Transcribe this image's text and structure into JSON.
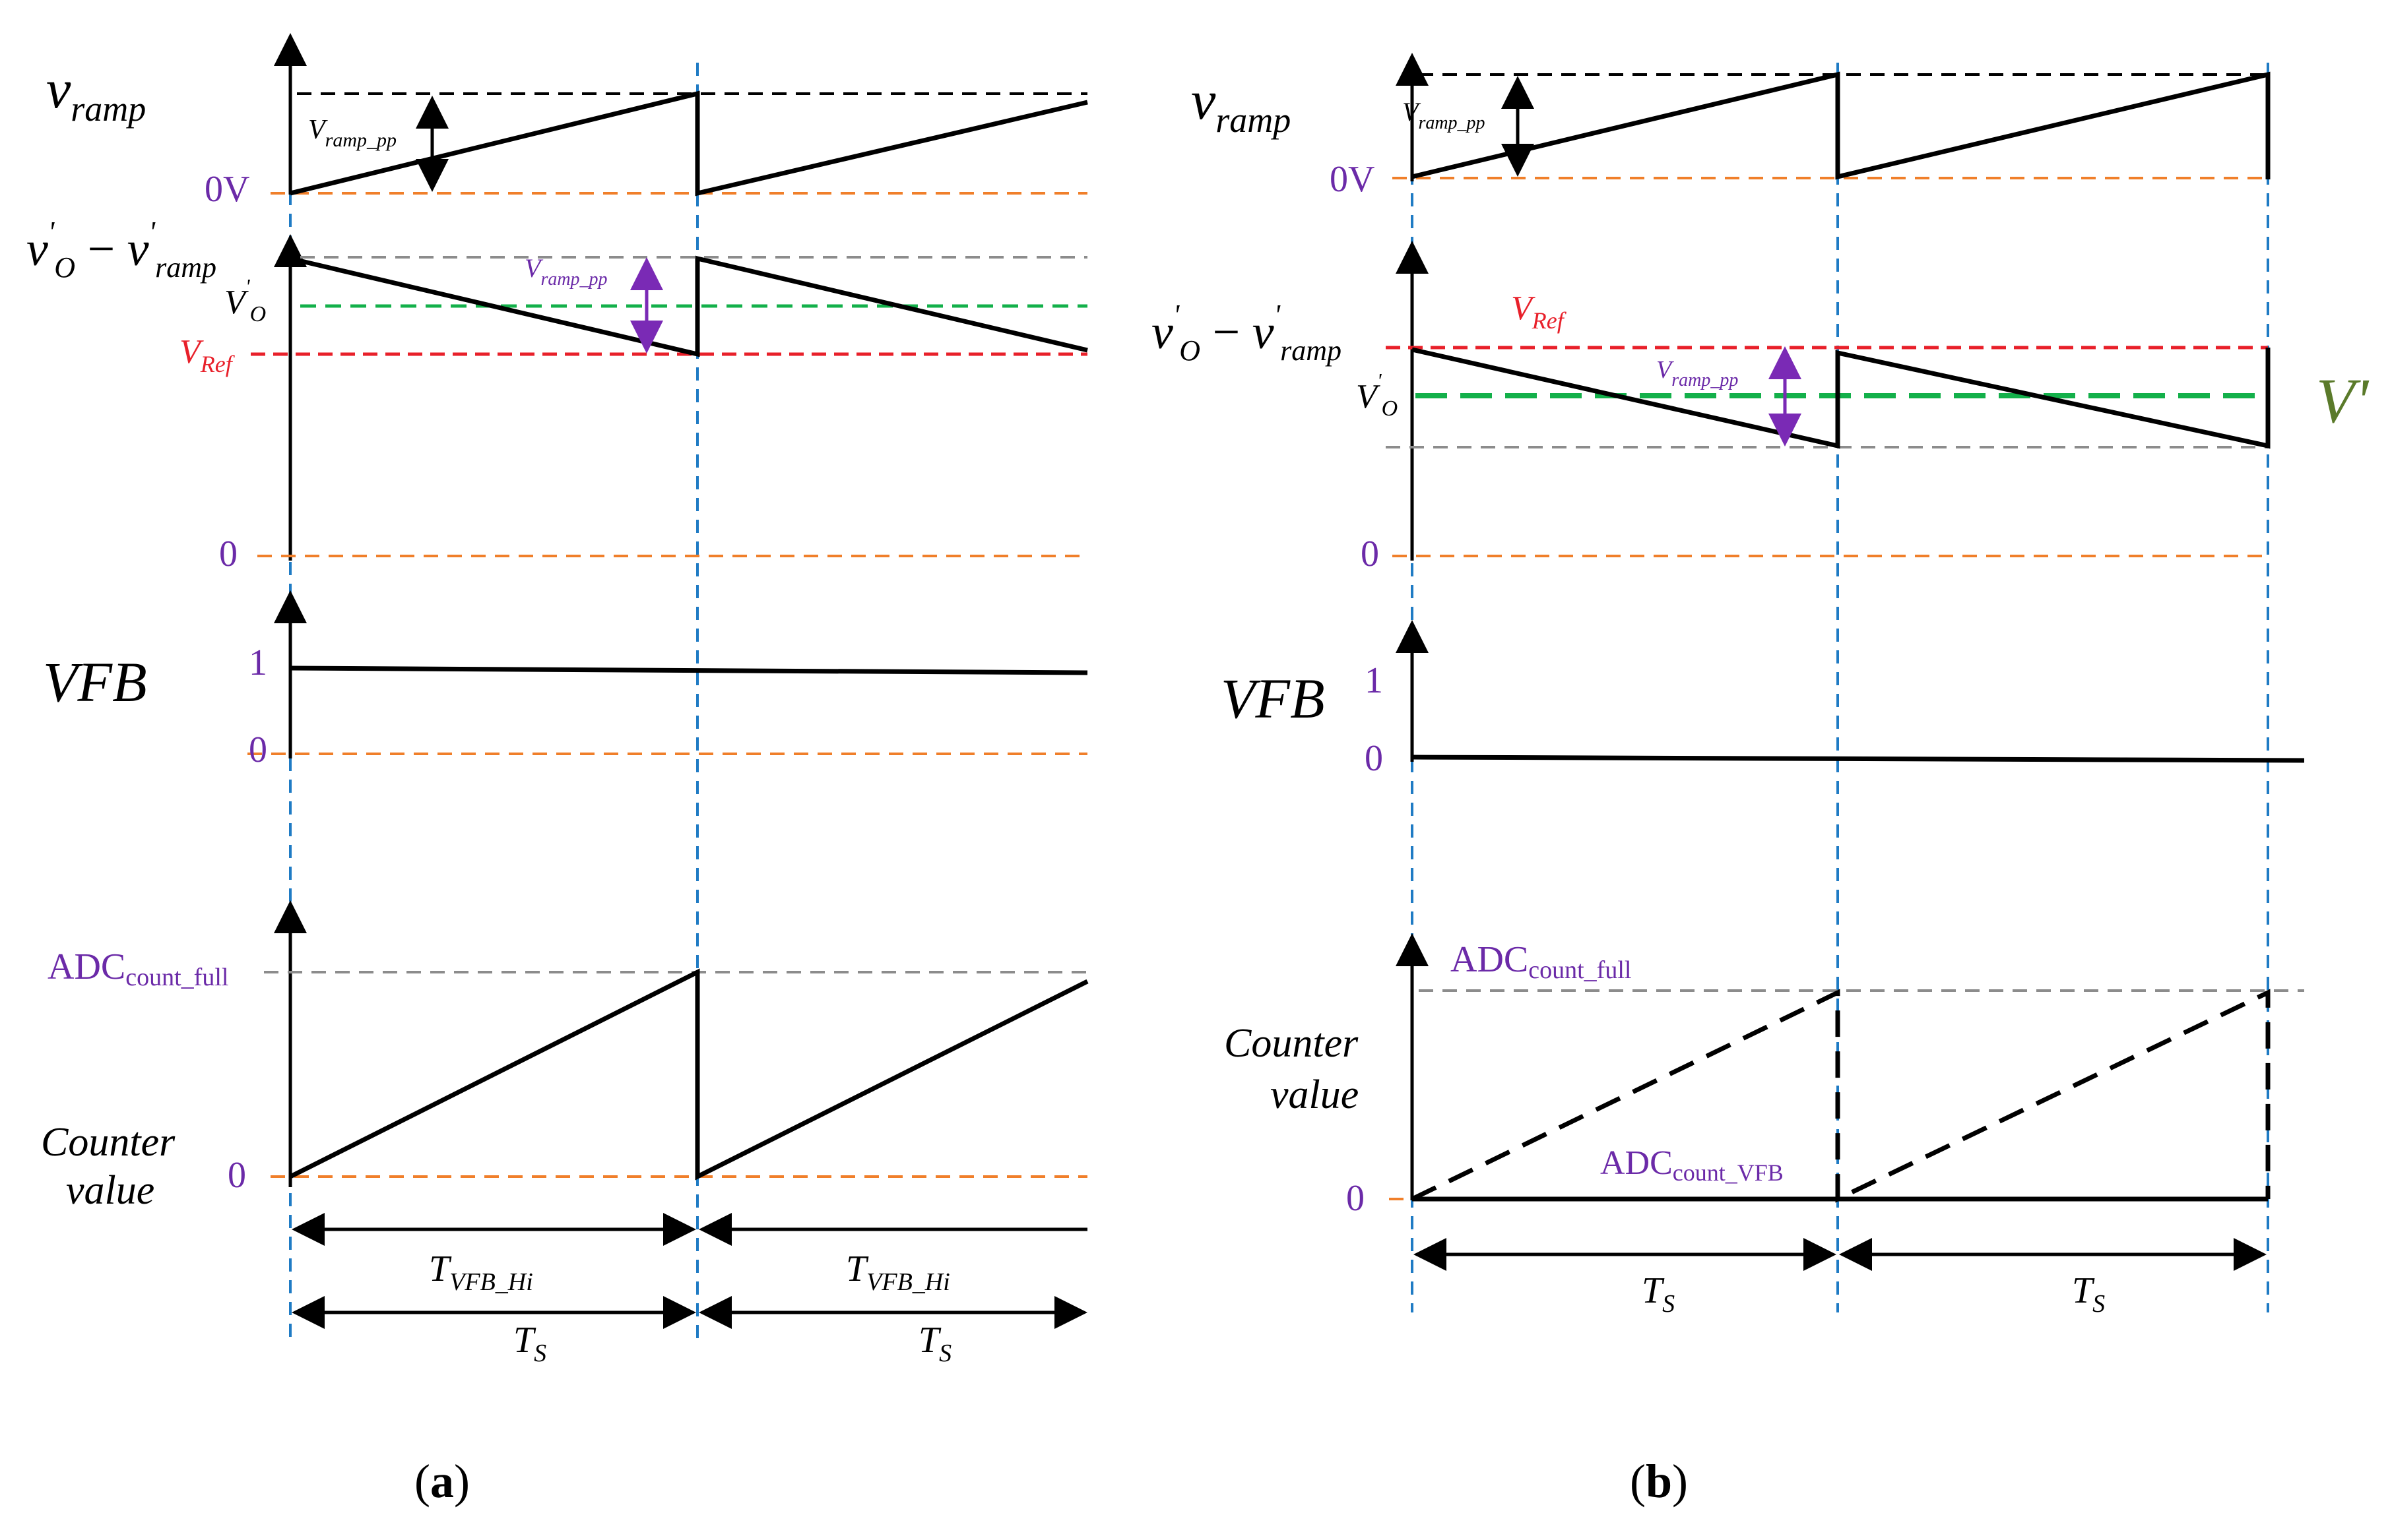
{
  "colors": {
    "black": "#000000",
    "purple": "#6b2aa8",
    "red": "#e8202a",
    "olive": "#5a7a2a",
    "orange": "#f07f2a",
    "gray": "#8c8c8c",
    "green": "#13b04a",
    "blue": "#1f7bc4"
  },
  "panel_a": {
    "caption_open": "(",
    "caption_letter": "a",
    "caption_close": ")",
    "vramp": {
      "label_main": "v",
      "label_sub": "ramp",
      "zero_label": "0V",
      "pp_main": "V",
      "pp_sub": "ramp_pp"
    },
    "vo_minus_vramp": {
      "label_v1": "v",
      "label_prime1": "'",
      "label_sub1": "O",
      "label_minus": " − ",
      "label_v2": "v",
      "label_prime2": "'",
      "label_sub2": "ramp",
      "vo_main": "V",
      "vo_prime": "'",
      "vo_sub": "O",
      "vref_main": "V",
      "vref_sub": "Ref",
      "pp_main": "V",
      "pp_sub": "ramp_pp",
      "zero_label": "0"
    },
    "vfb": {
      "label": "VFB",
      "high_label": "1",
      "low_label": "0"
    },
    "counter": {
      "label_line1": "Counter",
      "label_line2": "value",
      "full_main": "ADC",
      "full_sub": "count_full",
      "zero_label": "0"
    },
    "timing": {
      "t_hi_main": "T",
      "t_hi_sub": "VFB_Hi",
      "ts_main": "T",
      "ts_sub": "S"
    }
  },
  "panel_b": {
    "caption_open": "(",
    "caption_letter": "b",
    "caption_close": ")",
    "vramp": {
      "label_main": "v",
      "label_sub": "ramp",
      "zero_label": "0V",
      "pp_main": "V",
      "pp_sub": "ramp_pp"
    },
    "vo_minus_vramp": {
      "label_v1": "v",
      "label_prime1": "'",
      "label_sub1": "O",
      "label_minus": " − ",
      "label_v2": "v",
      "label_prime2": "'",
      "label_sub2": "ramp",
      "vo_main": "V",
      "vo_prime": "'",
      "vo_sub": "O",
      "vref_main": "V",
      "vref_sub": "Ref",
      "pp_main": "V",
      "pp_sub": "ramp_pp",
      "v_prime_label": "V'",
      "zero_label": "0"
    },
    "vfb": {
      "label": "VFB",
      "high_label": "1",
      "low_label": "0"
    },
    "counter": {
      "label_line1": "Counter",
      "label_line2": "value",
      "full_main": "ADC",
      "full_sub": "count_full",
      "vfb_main": "ADC",
      "vfb_sub": "count_VFB",
      "zero_label": "0"
    },
    "timing": {
      "ts_main": "T",
      "ts_sub": "S"
    }
  }
}
